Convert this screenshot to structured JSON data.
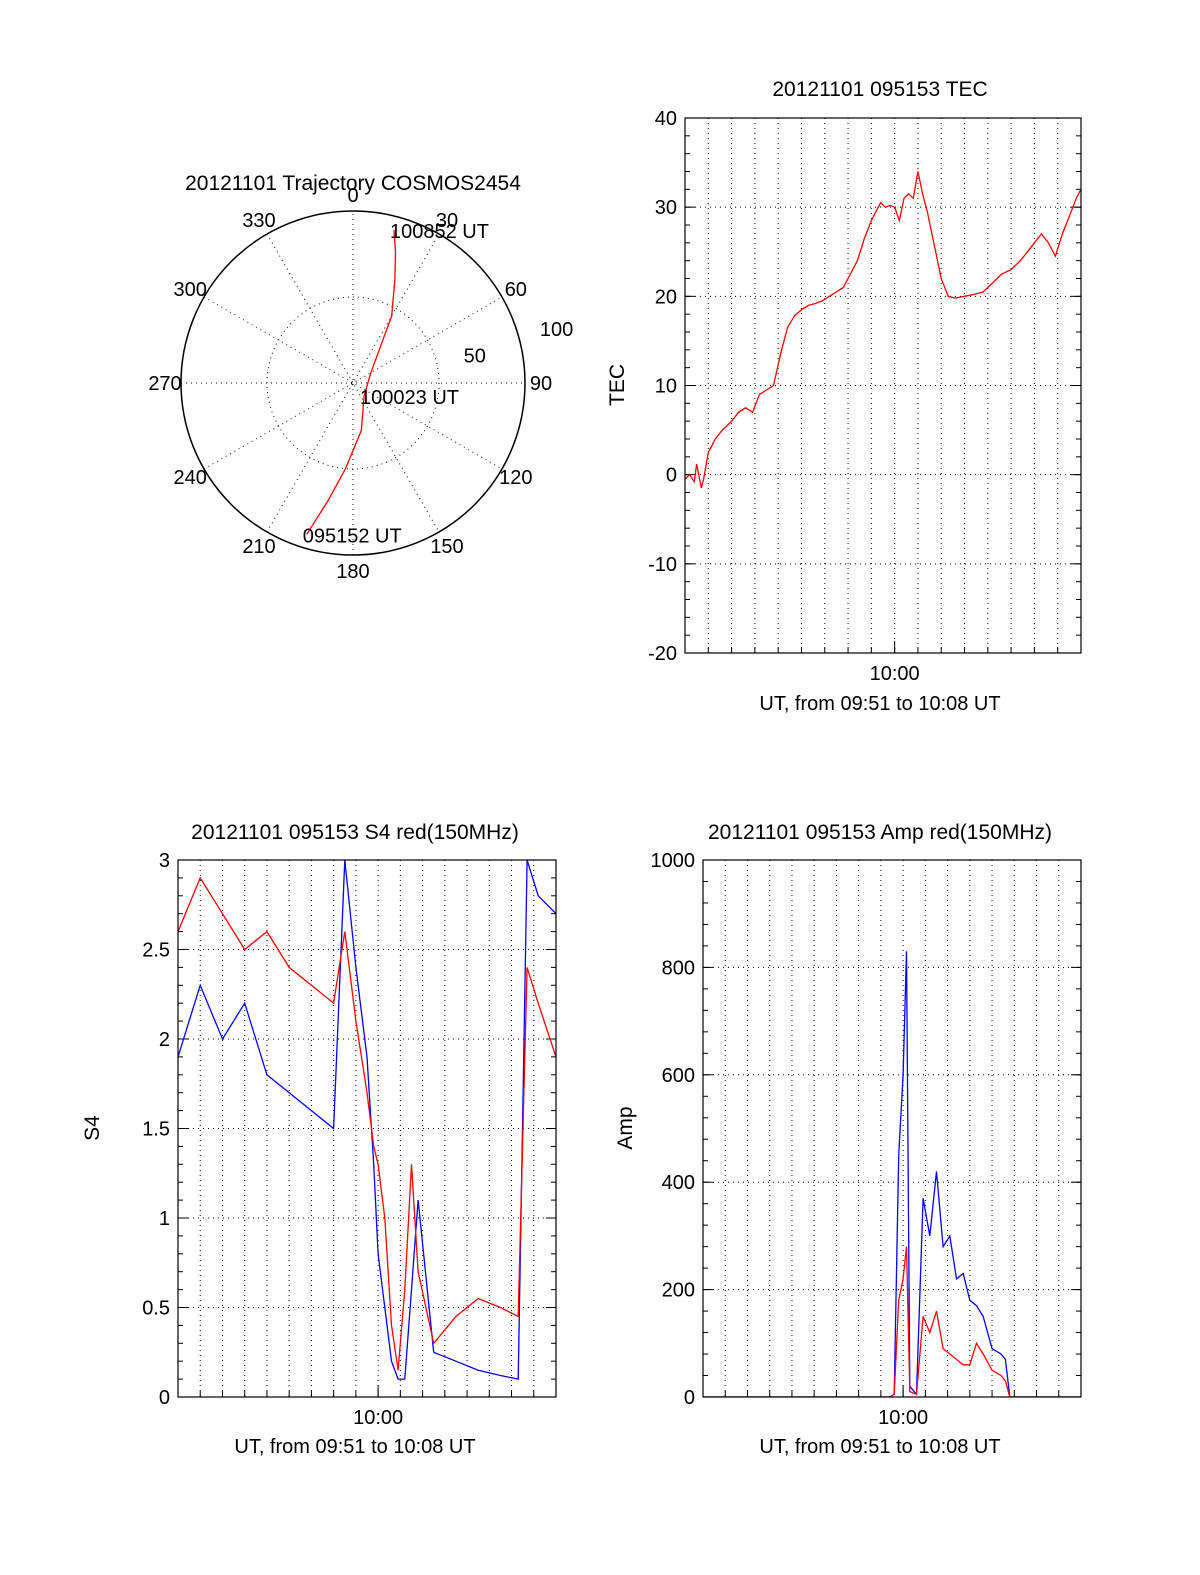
{
  "chart_data": [
    {
      "type": "polar",
      "title": "20121101 Trajectory COSMOS2454",
      "angle_labels": [
        "0",
        "30",
        "60",
        "90",
        "120",
        "150",
        "180",
        "210",
        "240",
        "270",
        "300",
        "330"
      ],
      "radius_labels": [
        "50",
        "100"
      ],
      "rmax": 100,
      "series": [
        {
          "color": "#ff0000",
          "points": [
            [
              197,
              92
            ],
            [
              192,
              70
            ],
            [
              185,
              50
            ],
            [
              170,
              28
            ],
            [
              140,
              10
            ],
            [
              60,
              12
            ],
            [
              30,
              45
            ],
            [
              22,
              65
            ],
            [
              18,
              80
            ],
            [
              15,
              92
            ]
          ]
        }
      ],
      "annotations": [
        {
          "text": "100852 UT",
          "az": 15,
          "r": 92
        },
        {
          "text": "100023 UT",
          "az": 140,
          "r": 10
        },
        {
          "text": "095152 UT",
          "az": 197,
          "r": 92
        }
      ]
    },
    {
      "type": "line",
      "title": "20121101 095153 TEC",
      "xlabel": "UT, from 09:51 to 10:08 UT",
      "ylabel": "TEC",
      "xlim": [
        0,
        17
      ],
      "ylim": [
        -20,
        40
      ],
      "yticks": [
        "-20",
        "-10",
        "0",
        "10",
        "20",
        "30",
        "40"
      ],
      "xticks": [
        {
          "value": 9,
          "label": "10:00"
        }
      ],
      "series": [
        {
          "color": "#ff0000",
          "x": [
            0,
            0.2,
            0.4,
            0.5,
            0.7,
            0.8,
            1.0,
            1.3,
            1.6,
            2.0,
            2.3,
            2.6,
            2.9,
            3.2,
            3.5,
            3.8,
            4.1,
            4.4,
            4.7,
            5.0,
            5.3,
            5.6,
            5.9,
            6.2,
            6.5,
            6.8,
            7.1,
            7.4,
            7.7,
            8.0,
            8.2,
            8.4,
            8.6,
            8.8,
            9.0,
            9.2,
            9.4,
            9.6,
            9.8,
            10.0,
            10.2,
            10.4,
            10.6,
            10.8,
            11.0,
            11.3,
            11.6,
            12.0,
            12.4,
            12.8,
            13.2,
            13.6,
            14.0,
            14.4,
            14.7,
            15.0,
            15.3,
            15.6,
            15.9,
            16.2,
            16.5,
            16.8,
            17.0
          ],
          "y": [
            -0.5,
            0,
            -0.8,
            1.2,
            -1.5,
            -0.5,
            2.5,
            4,
            5,
            6,
            7,
            7.5,
            7,
            9,
            9.5,
            10,
            13.5,
            16.5,
            17.8,
            18.5,
            19,
            19.2,
            19.5,
            20,
            20.5,
            21,
            22.5,
            24,
            26.5,
            28.5,
            29.5,
            30.5,
            30,
            30.2,
            30,
            28.5,
            31,
            31.5,
            31,
            34,
            31.5,
            29.5,
            27,
            24.5,
            22,
            20,
            19.8,
            20,
            20.2,
            20.5,
            21.5,
            22.5,
            23,
            24,
            25,
            26,
            27,
            26,
            24.5,
            27,
            29,
            31,
            32
          ]
        }
      ]
    },
    {
      "type": "line",
      "title": "20121101 095153 S4 red(150MHz)",
      "xlabel": "UT, from 09:51 to 10:08 UT",
      "ylabel": "S4",
      "xlim": [
        0,
        17
      ],
      "ylim": [
        0,
        3
      ],
      "yticks": [
        "0",
        "0.5",
        "1",
        "1.5",
        "2",
        "2.5",
        "3"
      ],
      "xticks": [
        {
          "value": 9,
          "label": "10:00"
        }
      ],
      "series": [
        {
          "color": "#0000ff",
          "x": [
            0,
            1,
            2,
            3,
            4,
            5,
            6,
            7,
            7.5,
            8,
            8.5,
            8.8,
            9.0,
            9.3,
            9.6,
            9.9,
            10.2,
            10.5,
            10.8,
            11.5,
            12.5,
            13.5,
            14.5,
            15.3,
            15.7,
            16.2,
            17.0
          ],
          "y": [
            1.9,
            2.3,
            2.0,
            2.2,
            1.8,
            1.7,
            1.6,
            1.5,
            3.0,
            2.4,
            1.9,
            1.3,
            0.8,
            0.5,
            0.2,
            0.1,
            0.1,
            0.6,
            1.1,
            0.25,
            0.2,
            0.15,
            0.12,
            0.1,
            3.0,
            2.8,
            2.7
          ]
        },
        {
          "color": "#ff0000",
          "x": [
            0,
            1,
            2,
            3,
            4,
            5,
            6,
            7,
            7.5,
            8,
            8.5,
            8.8,
            9.0,
            9.3,
            9.6,
            9.9,
            10.2,
            10.5,
            10.8,
            11.5,
            12.5,
            13.5,
            14.5,
            15.3,
            15.7,
            16.2,
            17.0
          ],
          "y": [
            2.6,
            2.9,
            2.7,
            2.5,
            2.6,
            2.4,
            2.3,
            2.2,
            2.6,
            2.1,
            1.7,
            1.4,
            1.3,
            1.0,
            0.4,
            0.15,
            0.6,
            1.3,
            0.7,
            0.3,
            0.45,
            0.55,
            0.5,
            0.45,
            2.4,
            2.2,
            1.9
          ]
        }
      ]
    },
    {
      "type": "line",
      "title": "20121101 095153 Amp red(150MHz)",
      "xlabel": "UT, from 09:51 to 10:08 UT",
      "ylabel": "Amp",
      "xlim": [
        0,
        17
      ],
      "ylim": [
        0,
        1000
      ],
      "yticks": [
        "0",
        "200",
        "400",
        "600",
        "800",
        "1000"
      ],
      "xticks": [
        {
          "value": 9,
          "label": "10:00"
        }
      ],
      "series": [
        {
          "color": "#0000ff",
          "x": [
            0,
            8.4,
            8.6,
            8.8,
            9.0,
            9.15,
            9.3,
            9.6,
            9.9,
            10.2,
            10.5,
            10.8,
            11.1,
            11.4,
            11.7,
            12.0,
            12.3,
            12.6,
            13.0,
            13.4,
            13.6,
            13.8,
            14.2,
            17.0
          ],
          "y": [
            0,
            0,
            5,
            450,
            600,
            830,
            20,
            5,
            370,
            300,
            420,
            280,
            300,
            220,
            230,
            180,
            170,
            150,
            90,
            80,
            70,
            0,
            0,
            0
          ]
        },
        {
          "color": "#ff0000",
          "x": [
            0,
            8.4,
            8.6,
            8.8,
            9.0,
            9.15,
            9.3,
            9.6,
            9.9,
            10.2,
            10.5,
            10.8,
            11.1,
            11.4,
            11.7,
            12.0,
            12.3,
            12.6,
            13.0,
            13.4,
            13.6,
            13.8,
            14.2,
            17.0
          ],
          "y": [
            0,
            0,
            5,
            180,
            220,
            280,
            10,
            5,
            150,
            120,
            160,
            90,
            80,
            70,
            60,
            60,
            100,
            80,
            50,
            40,
            30,
            0,
            0,
            0
          ]
        }
      ]
    }
  ]
}
